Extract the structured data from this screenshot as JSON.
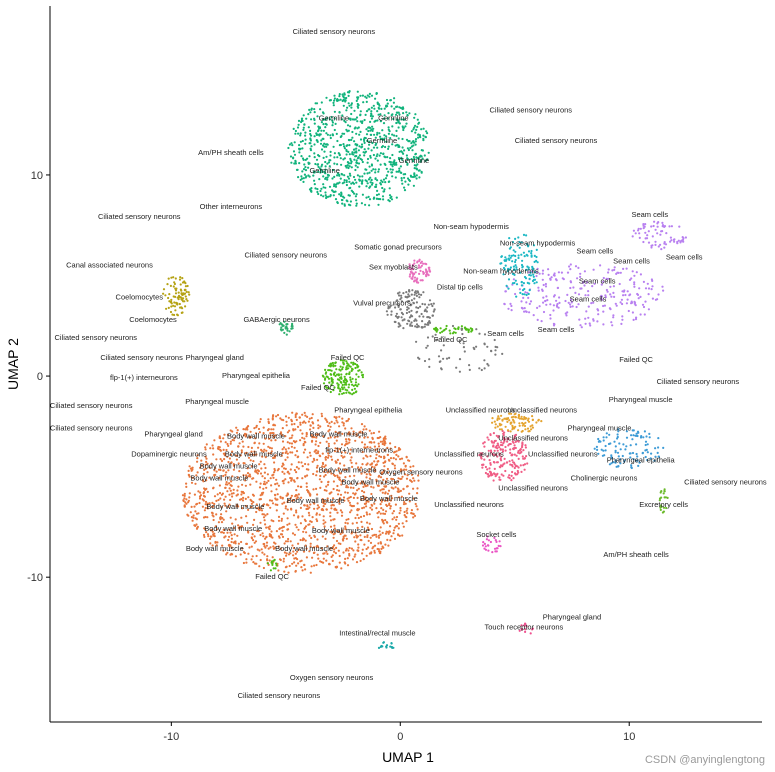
{
  "watermark": "CSDN @anyinglengtong",
  "chart_data": {
    "type": "scatter",
    "title": "",
    "xlabel": "UMAP 1",
    "ylabel": "UMAP 2",
    "xlim": [
      -15.3,
      15.8
    ],
    "ylim": [
      -17.2,
      18.4
    ],
    "xticks": [
      -10,
      0,
      10
    ],
    "yticks": [
      -10,
      0,
      10
    ],
    "grid": false,
    "legend": "none",
    "clusters": [
      {
        "name": "Germline",
        "color": "#11b37c",
        "cx": -1.8,
        "cy": 11.3,
        "rx": 3.1,
        "ry": 2.9,
        "n": 900
      },
      {
        "name": "Body wall muscle",
        "color": "#e8773d",
        "cx": -4.3,
        "cy": -5.8,
        "rx": 5.2,
        "ry": 4.0,
        "n": 1700
      },
      {
        "name": "Seam cells",
        "color": "#b880f0",
        "cx": 8.0,
        "cy": 4.0,
        "rx": 3.6,
        "ry": 1.6,
        "n": 260
      },
      {
        "name": "Seam cells",
        "color": "#b880f0",
        "cx": 11.3,
        "cy": 7.0,
        "rx": 1.2,
        "ry": 0.7,
        "n": 70
      },
      {
        "name": "Coelomocytes",
        "color": "#b5a214",
        "cx": -9.8,
        "cy": 4.0,
        "rx": 0.6,
        "ry": 1.0,
        "n": 90
      },
      {
        "name": "Failed QC",
        "color": "#4fbd17",
        "cx": -2.5,
        "cy": -0.1,
        "rx": 0.9,
        "ry": 0.9,
        "n": 160
      },
      {
        "name": "Unclassified neurons",
        "color": "#f05d85",
        "cx": 4.5,
        "cy": -4.0,
        "rx": 1.1,
        "ry": 1.3,
        "n": 200
      },
      {
        "name": "Unclassified neurons",
        "color": "#e4a32e",
        "cx": 5.1,
        "cy": -2.3,
        "rx": 1.2,
        "ry": 0.5,
        "n": 90
      },
      {
        "name": "Non-seam hypodermis",
        "color": "#1cb8c4",
        "cx": 5.2,
        "cy": 5.5,
        "rx": 0.9,
        "ry": 1.6,
        "n": 120
      },
      {
        "name": "Pharyngeal epithelia",
        "color": "#3d9bd6",
        "cx": 10.0,
        "cy": -3.6,
        "rx": 1.6,
        "ry": 1.0,
        "n": 110
      },
      {
        "name": "Sex myoblasts",
        "color": "#e86fbd",
        "cx": 0.8,
        "cy": 5.2,
        "rx": 0.5,
        "ry": 0.6,
        "n": 70
      },
      {
        "name": "Vulval precursors",
        "color": "#7a7a7a",
        "cx": 0.5,
        "cy": 3.3,
        "rx": 1.1,
        "ry": 1.0,
        "n": 140
      },
      {
        "name": "GABAergic neurons",
        "color": "#2eae6e",
        "cx": -5.0,
        "cy": 2.4,
        "rx": 0.35,
        "ry": 0.35,
        "n": 30
      },
      {
        "name": "Failed QC",
        "color": "#4fbd17",
        "cx": 2.3,
        "cy": 2.3,
        "rx": 0.9,
        "ry": 0.2,
        "n": 40
      },
      {
        "name": "Excretory cells",
        "color": "#6bba2a",
        "cx": 11.5,
        "cy": -6.2,
        "rx": 0.2,
        "ry": 0.6,
        "n": 20
      },
      {
        "name": "Socket cells",
        "color": "#ea55c4",
        "cx": 4.0,
        "cy": -8.4,
        "rx": 0.4,
        "ry": 0.5,
        "n": 25
      },
      {
        "name": "Touch receptor neurons",
        "color": "#f0508f",
        "cx": 5.5,
        "cy": -12.6,
        "rx": 0.3,
        "ry": 0.3,
        "n": 15
      },
      {
        "name": "Intestinal/rectal muscle",
        "color": "#1aa8a8",
        "cx": -0.6,
        "cy": -13.4,
        "rx": 0.4,
        "ry": 0.2,
        "n": 15
      },
      {
        "name": "Failed QC",
        "color": "#4fbd17",
        "cx": -5.5,
        "cy": -9.4,
        "rx": 0.3,
        "ry": 0.3,
        "n": 12
      },
      {
        "name": "Cholinergic neurons",
        "color": "#7a7a7a",
        "cx": 2.5,
        "cy": 1.3,
        "rx": 2.0,
        "ry": 1.2,
        "n": 60
      }
    ],
    "labels": [
      {
        "text": "Ciliated sensory neurons",
        "x": -2.9,
        "y": 17.0
      },
      {
        "text": "Ciliated sensory neurons",
        "x": 5.7,
        "y": 13.1
      },
      {
        "text": "Ciliated sensory neurons",
        "x": 6.8,
        "y": 11.6
      },
      {
        "text": "Germline",
        "x": -2.9,
        "y": 12.7
      },
      {
        "text": "Germline",
        "x": -0.3,
        "y": 12.7
      },
      {
        "text": "Germline",
        "x": -0.8,
        "y": 11.6
      },
      {
        "text": "Germline",
        "x": 0.6,
        "y": 10.6
      },
      {
        "text": "Germline",
        "x": -3.3,
        "y": 10.1
      },
      {
        "text": "Am/PH sheath cells",
        "x": -7.4,
        "y": 11.0
      },
      {
        "text": "Ciliated sensory neurons",
        "x": -11.4,
        "y": 7.8
      },
      {
        "text": "Other interneurons",
        "x": -7.4,
        "y": 8.3
      },
      {
        "text": "Ciliated sensory neurons",
        "x": -5.0,
        "y": 5.9
      },
      {
        "text": "Canal associated neurons",
        "x": -12.7,
        "y": 5.4
      },
      {
        "text": "Coelomocytes",
        "x": -11.4,
        "y": 3.8
      },
      {
        "text": "Coelomocytes",
        "x": -10.8,
        "y": 2.7
      },
      {
        "text": "GABAergic neurons",
        "x": -5.4,
        "y": 2.7
      },
      {
        "text": "Ciliated sensory neurons",
        "x": -13.3,
        "y": 1.8
      },
      {
        "text": "Ciliated sensory neurons",
        "x": -11.3,
        "y": 0.8
      },
      {
        "text": "Pharyngeal gland",
        "x": -8.1,
        "y": 0.8
      },
      {
        "text": "flp-1(+) interneurons",
        "x": -11.2,
        "y": -0.2
      },
      {
        "text": "Pharyngeal epithelia",
        "x": -6.3,
        "y": -0.1
      },
      {
        "text": "Ciliated sensory neurons",
        "x": -13.5,
        "y": -1.6
      },
      {
        "text": "Pharyngeal muscle",
        "x": -8.0,
        "y": -1.4
      },
      {
        "text": "Ciliated sensory neurons",
        "x": -13.5,
        "y": -2.7
      },
      {
        "text": "Pharyngeal gland",
        "x": -9.9,
        "y": -3.0
      },
      {
        "text": "Dopaminergic neurons",
        "x": -10.1,
        "y": -4.0
      },
      {
        "text": "Body wall muscle",
        "x": -6.3,
        "y": -3.1
      },
      {
        "text": "Body wall muscle",
        "x": -2.7,
        "y": -3.0
      },
      {
        "text": "Body wall muscle",
        "x": -7.5,
        "y": -4.6
      },
      {
        "text": "Body wall muscle",
        "x": -6.4,
        "y": -4.0
      },
      {
        "text": "Body wall muscle",
        "x": -2.3,
        "y": -4.8
      },
      {
        "text": "Body wall muscle",
        "x": -7.9,
        "y": -5.2
      },
      {
        "text": "Body wall muscle",
        "x": -1.3,
        "y": -5.4
      },
      {
        "text": "Body wall muscle",
        "x": -7.2,
        "y": -6.6
      },
      {
        "text": "Body wall muscle",
        "x": -3.7,
        "y": -6.3
      },
      {
        "text": "Body wall muscle",
        "x": -0.5,
        "y": -6.2
      },
      {
        "text": "Body wall muscle",
        "x": -7.3,
        "y": -7.7
      },
      {
        "text": "Body wall muscle",
        "x": -2.6,
        "y": -7.8
      },
      {
        "text": "Body wall muscle",
        "x": -8.1,
        "y": -8.7
      },
      {
        "text": "Body wall muscle",
        "x": -4.2,
        "y": -8.7
      },
      {
        "text": "Failed QC",
        "x": -5.6,
        "y": -10.1
      },
      {
        "text": "Failed QC",
        "x": -2.3,
        "y": 0.8
      },
      {
        "text": "Failed QC",
        "x": -3.6,
        "y": -0.7
      },
      {
        "text": "Pharyngeal epithelia",
        "x": -1.4,
        "y": -1.8
      },
      {
        "text": "flp-1(+) interneurons",
        "x": -1.8,
        "y": -3.8
      },
      {
        "text": "Oxygen sensory neurons",
        "x": 0.9,
        "y": -4.9
      },
      {
        "text": "Unclassified neurons",
        "x": 3.5,
        "y": -1.8
      },
      {
        "text": "Unclassified neurons",
        "x": 6.2,
        "y": -1.8
      },
      {
        "text": "Unclassified neurons",
        "x": 5.8,
        "y": -3.2
      },
      {
        "text": "Unclassified neurons",
        "x": 3.0,
        "y": -4.0
      },
      {
        "text": "Unclassified neurons",
        "x": 7.1,
        "y": -4.0
      },
      {
        "text": "Unclassified neurons",
        "x": 5.8,
        "y": -5.7
      },
      {
        "text": "Unclassified neurons",
        "x": 3.0,
        "y": -6.5
      },
      {
        "text": "Cholinergic neurons",
        "x": 8.9,
        "y": -5.2
      },
      {
        "text": "Somatic gonad precursors",
        "x": -0.1,
        "y": 6.3
      },
      {
        "text": "Non-seam hypodermis",
        "x": 3.1,
        "y": 7.3
      },
      {
        "text": "Non-seam hypodermis",
        "x": 6.0,
        "y": 6.5
      },
      {
        "text": "Non-seam hypodermis",
        "x": 4.4,
        "y": 5.1
      },
      {
        "text": "Sex myoblasts",
        "x": -0.3,
        "y": 5.3
      },
      {
        "text": "Distal tip cells",
        "x": 2.6,
        "y": 4.3
      },
      {
        "text": "Vulval precursors",
        "x": -0.8,
        "y": 3.5
      },
      {
        "text": "Failed QC",
        "x": 2.2,
        "y": 1.7
      },
      {
        "text": "Seam cells",
        "x": 4.6,
        "y": 2.0
      },
      {
        "text": "Seam cells",
        "x": 10.9,
        "y": 7.9
      },
      {
        "text": "Seam cells",
        "x": 8.5,
        "y": 6.1
      },
      {
        "text": "Seam cells",
        "x": 10.1,
        "y": 5.6
      },
      {
        "text": "Seam cells",
        "x": 12.4,
        "y": 5.8
      },
      {
        "text": "Seam cells",
        "x": 8.6,
        "y": 4.6
      },
      {
        "text": "Seam cells",
        "x": 8.2,
        "y": 3.7
      },
      {
        "text": "Seam cells",
        "x": 6.8,
        "y": 2.2
      },
      {
        "text": "Failed QC",
        "x": 10.3,
        "y": 0.7
      },
      {
        "text": "Ciliated sensory neurons",
        "x": 13.0,
        "y": -0.4
      },
      {
        "text": "Pharyngeal muscle",
        "x": 10.5,
        "y": -1.3
      },
      {
        "text": "Pharyngeal muscle",
        "x": 8.7,
        "y": -2.7
      },
      {
        "text": "Pharyngeal epithelia",
        "x": 10.5,
        "y": -4.3
      },
      {
        "text": "Ciliated sensory neurons",
        "x": 14.2,
        "y": -5.4
      },
      {
        "text": "Excretory cells",
        "x": 11.5,
        "y": -6.5
      },
      {
        "text": "Socket cells",
        "x": 4.2,
        "y": -8.0
      },
      {
        "text": "Am/PH sheath cells",
        "x": 10.3,
        "y": -9.0
      },
      {
        "text": "Pharyngeal gland",
        "x": 7.5,
        "y": -12.1
      },
      {
        "text": "Touch receptor neurons",
        "x": 5.4,
        "y": -12.6
      },
      {
        "text": "Intestinal/rectal muscle",
        "x": -1.0,
        "y": -12.9
      },
      {
        "text": "Oxygen sensory neurons",
        "x": -3.0,
        "y": -15.1
      },
      {
        "text": "Ciliated sensory neurons",
        "x": -5.3,
        "y": -16.0
      }
    ]
  }
}
